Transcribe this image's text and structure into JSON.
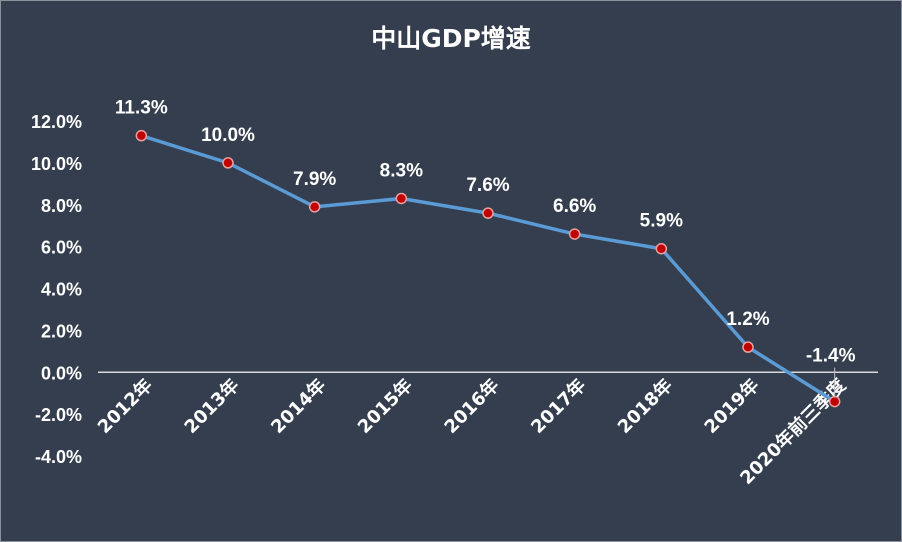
{
  "chart_data": {
    "type": "line",
    "title": "中山GDP增速",
    "categories": [
      "2012年",
      "2013年",
      "2014年",
      "2015年",
      "2016年",
      "2017年",
      "2018年",
      "2019年",
      "2020年前三季度"
    ],
    "values": [
      11.3,
      10.0,
      7.9,
      8.3,
      7.6,
      6.6,
      5.9,
      1.2,
      -1.4
    ],
    "data_labels": [
      "11.3%",
      "10.0%",
      "7.9%",
      "8.3%",
      "7.6%",
      "6.6%",
      "5.9%",
      "1.2%",
      "-1.4%"
    ],
    "y_ticks": [
      "-4.0%",
      "-2.0%",
      "0.0%",
      "2.0%",
      "4.0%",
      "6.0%",
      "8.0%",
      "10.0%",
      "12.0%"
    ],
    "y_tick_values": [
      -4,
      -2,
      0,
      2,
      4,
      6,
      8,
      10,
      12
    ],
    "ylim": [
      -4,
      12
    ],
    "xlabel": "",
    "ylabel": "",
    "grid": false,
    "legend": "none",
    "colors": {
      "background": "#343e4e",
      "line": "#5b9bd5",
      "marker": "#c00000",
      "text": "#ffffff",
      "axis": "#d9d9d9"
    }
  }
}
